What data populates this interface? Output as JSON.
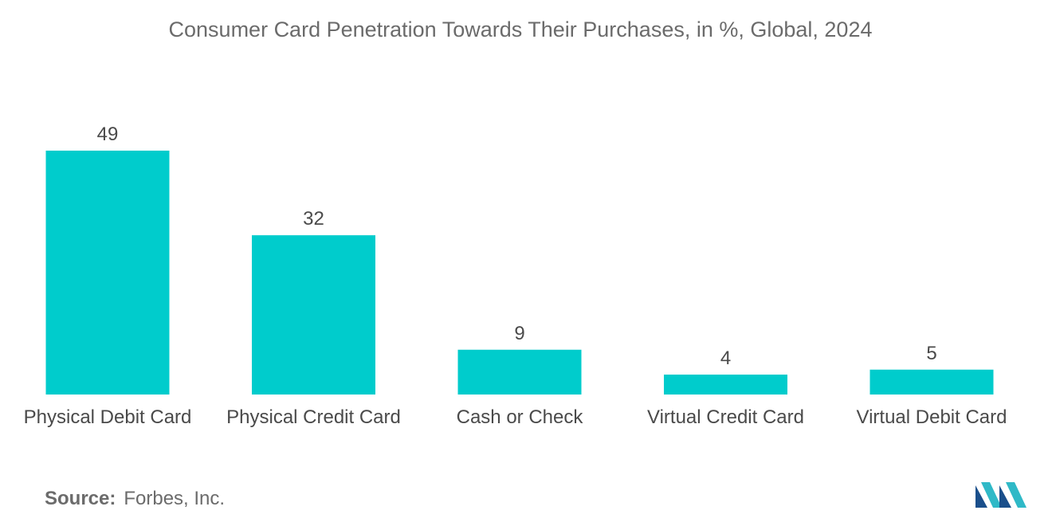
{
  "chart_data": {
    "type": "bar",
    "title": "Consumer Card Penetration Towards Their Purchases, in %, Global, 2024",
    "categories": [
      "Physical Debit Card",
      "Physical Credit Card",
      "Cash or Check",
      "Virtual Credit Card",
      "Virtual Debit Card"
    ],
    "values": [
      49,
      32,
      9,
      4,
      5
    ],
    "data_labels": [
      "49",
      "32",
      "9",
      "4",
      "5"
    ],
    "xlabel": "",
    "ylabel": "",
    "ylim": [
      0,
      49
    ],
    "grid": false,
    "legend": "none",
    "bar_color": "#00cccc"
  },
  "source": {
    "label": "Source:",
    "text": "Forbes, Inc."
  },
  "logo": {
    "icon": "mordor-logo-icon",
    "colors": [
      "#1a4f8b",
      "#2fb9c7"
    ]
  }
}
